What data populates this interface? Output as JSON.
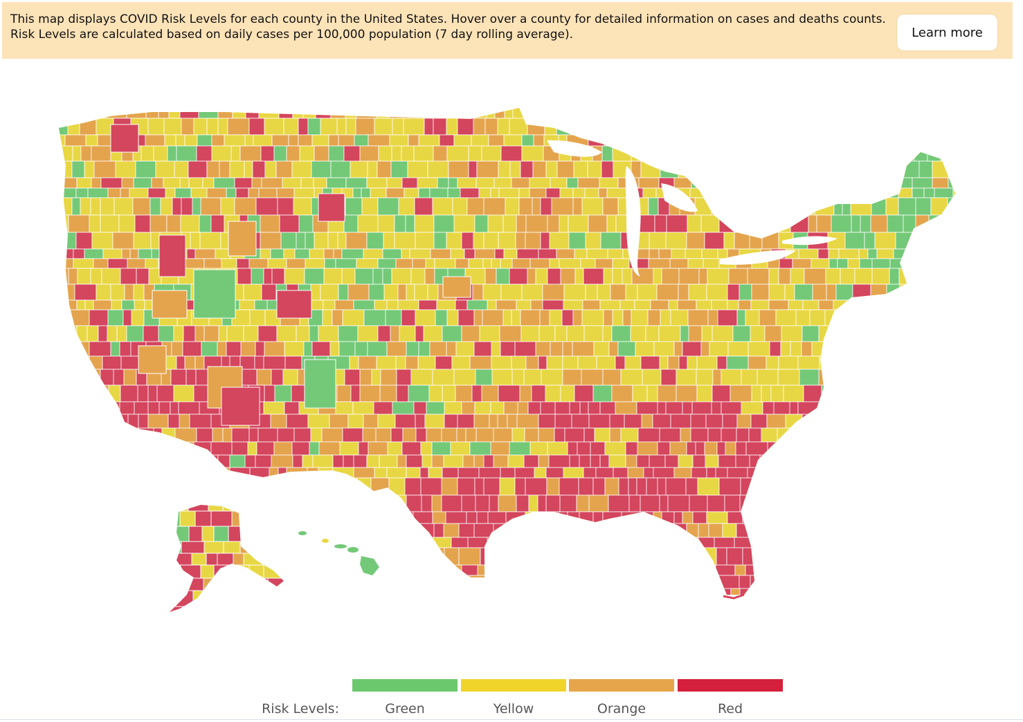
{
  "banner": {
    "text": "This map displays COVID Risk Levels for each county in the United States. Hover over a county for detailed information on cases and deaths counts. Risk Levels are calculated based on daily cases per 100,000 population (7 day rolling average).",
    "button_label": "Learn more"
  },
  "map": {
    "region_colors": {
      "green": "#73c978",
      "yellow": "#e8d744",
      "orange": "#e4a44e",
      "red": "#d4455e"
    }
  },
  "legend": {
    "title": "Risk Levels:",
    "items": [
      {
        "label": "Green",
        "color": "#6cc86c"
      },
      {
        "label": "Yellow",
        "color": "#f0d42a"
      },
      {
        "label": "Orange",
        "color": "#e6a54a"
      },
      {
        "label": "Red",
        "color": "#d4203c"
      }
    ]
  }
}
